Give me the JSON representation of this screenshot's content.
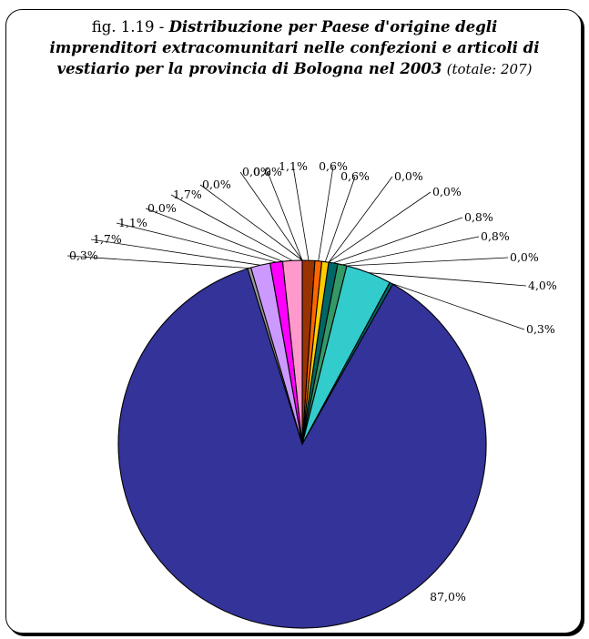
{
  "chart_data": {
    "type": "pie",
    "title_prefix": "fig. 1.19 - ",
    "title": "Distribuzione per Paese d'origine degli imprenditori extracomunitari nelle confezioni e articoli di vestiario per la provincia di Bologna nel 2003",
    "subtitle": "(totale: 207)",
    "total": 207,
    "start_angle_deg": 0,
    "direction": "clockwise",
    "slices": [
      {
        "value": 1.1,
        "label": "1,1%",
        "color": "#993300"
      },
      {
        "value": 0.6,
        "label": "0,6%",
        "color": "#FF6600"
      },
      {
        "value": 0.6,
        "label": "0,6%",
        "color": "#FFCC00"
      },
      {
        "value": 0.0,
        "label": "0,0%",
        "color": "#339966"
      },
      {
        "value": 0.0,
        "label": "0,0%",
        "color": "#33CCCC"
      },
      {
        "value": 0.8,
        "label": "0,8%",
        "color": "#006666"
      },
      {
        "value": 0.8,
        "label": "0,8%",
        "color": "#339966"
      },
      {
        "value": 0.0,
        "label": "0,0%",
        "color": "#99CC00"
      },
      {
        "value": 4.0,
        "label": "4,0%",
        "color": "#33CCCC"
      },
      {
        "value": 0.3,
        "label": "0,3%",
        "color": "#006666"
      },
      {
        "value": 87.0,
        "label": "87,0%",
        "color": "#333399"
      },
      {
        "value": 0.3,
        "label": "0,3%",
        "color": "#999999"
      },
      {
        "value": 1.7,
        "label": "1,7%",
        "color": "#CC99FF"
      },
      {
        "value": 1.1,
        "label": "1,1%",
        "color": "#FF00FF"
      },
      {
        "value": 0.0,
        "label": "0,0%",
        "color": "#FFFFFF"
      },
      {
        "value": 1.7,
        "label": "1,7%",
        "color": "#FF99CC"
      },
      {
        "value": 0.0,
        "label": "0,0%",
        "color": "#CCFFCC"
      },
      {
        "value": 0.0,
        "label": "0,0%",
        "color": "#FFFF99"
      },
      {
        "value": 0.0,
        "label": "0,0%",
        "color": "#000000"
      }
    ]
  }
}
